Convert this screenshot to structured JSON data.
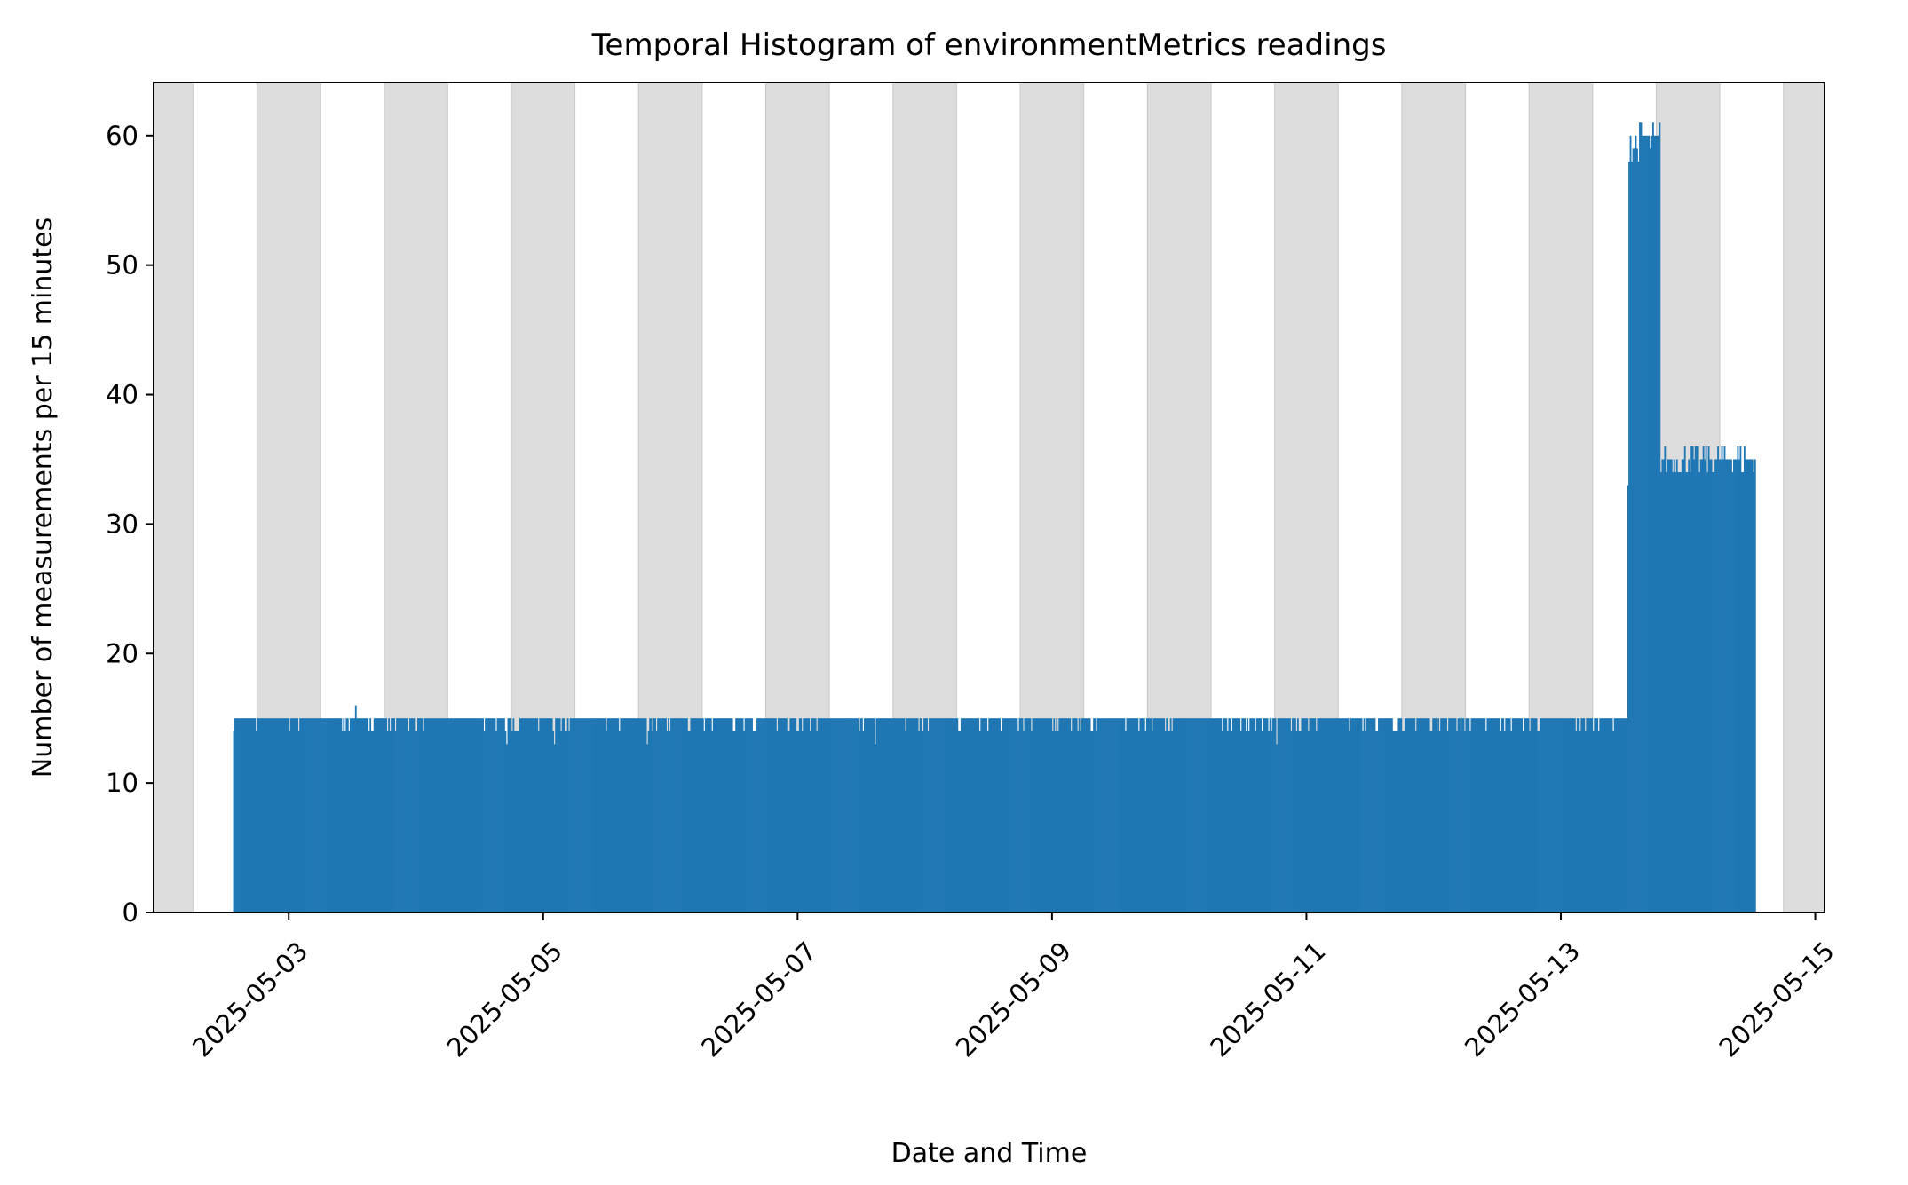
{
  "chart_data": {
    "type": "bar",
    "title": "Temporal Histogram of environmentMetrics readings",
    "xlabel": "Date and Time",
    "ylabel": "Number of measurements per 15 minutes",
    "bin_minutes": 15,
    "xlim": [
      "2025-05-01T22:30",
      "2025-05-15T01:45"
    ],
    "ylim": [
      0,
      64.1
    ],
    "x_ticks": [
      "2025-05-03",
      "2025-05-05",
      "2025-05-07",
      "2025-05-09",
      "2025-05-11",
      "2025-05-13",
      "2025-05-15"
    ],
    "y_ticks": [
      0,
      10,
      20,
      30,
      40,
      50,
      60
    ],
    "grid": false,
    "bar_color": "#1f77b4",
    "shade_color": "#dddddd",
    "shaded_periods": [
      {
        "start": "2025-05-01T22:30",
        "end": "2025-05-02T06:00"
      },
      {
        "start": "2025-05-02T18:00",
        "end": "2025-05-03T06:00"
      },
      {
        "start": "2025-05-03T18:00",
        "end": "2025-05-04T06:00"
      },
      {
        "start": "2025-05-04T18:00",
        "end": "2025-05-05T06:00"
      },
      {
        "start": "2025-05-05T18:00",
        "end": "2025-05-06T06:00"
      },
      {
        "start": "2025-05-06T18:00",
        "end": "2025-05-07T06:00"
      },
      {
        "start": "2025-05-07T18:00",
        "end": "2025-05-08T06:00"
      },
      {
        "start": "2025-05-08T18:00",
        "end": "2025-05-09T06:00"
      },
      {
        "start": "2025-05-09T18:00",
        "end": "2025-05-10T06:00"
      },
      {
        "start": "2025-05-10T18:00",
        "end": "2025-05-11T06:00"
      },
      {
        "start": "2025-05-11T18:00",
        "end": "2025-05-12T06:00"
      },
      {
        "start": "2025-05-12T18:00",
        "end": "2025-05-13T06:00"
      },
      {
        "start": "2025-05-13T18:00",
        "end": "2025-05-14T06:00"
      },
      {
        "start": "2025-05-14T18:00",
        "end": "2025-05-15T01:45"
      }
    ],
    "series": [
      {
        "segments": [
          {
            "start": "2025-05-02T13:30",
            "end": "2025-05-13T12:30",
            "value": 15,
            "min": 14,
            "max": 15
          },
          {
            "start": "2025-05-13T12:30",
            "end": "2025-05-13T12:45",
            "value": 33
          },
          {
            "start": "2025-05-13T12:45",
            "end": "2025-05-13T18:45",
            "value": 60,
            "min": 58,
            "max": 61
          },
          {
            "start": "2025-05-13T18:45",
            "end": "2025-05-14T12:45",
            "value": 35,
            "min": 34,
            "max": 36
          }
        ],
        "outliers": [
          {
            "x": "2025-05-03T12:30",
            "value": 16
          },
          {
            "x": "2025-05-04T17:00",
            "value": 13
          },
          {
            "x": "2025-05-05T02:00",
            "value": 13
          },
          {
            "x": "2025-05-05T19:30",
            "value": 13
          },
          {
            "x": "2025-05-07T14:30",
            "value": 13
          },
          {
            "x": "2025-05-10T18:15",
            "value": 13
          }
        ]
      }
    ]
  }
}
